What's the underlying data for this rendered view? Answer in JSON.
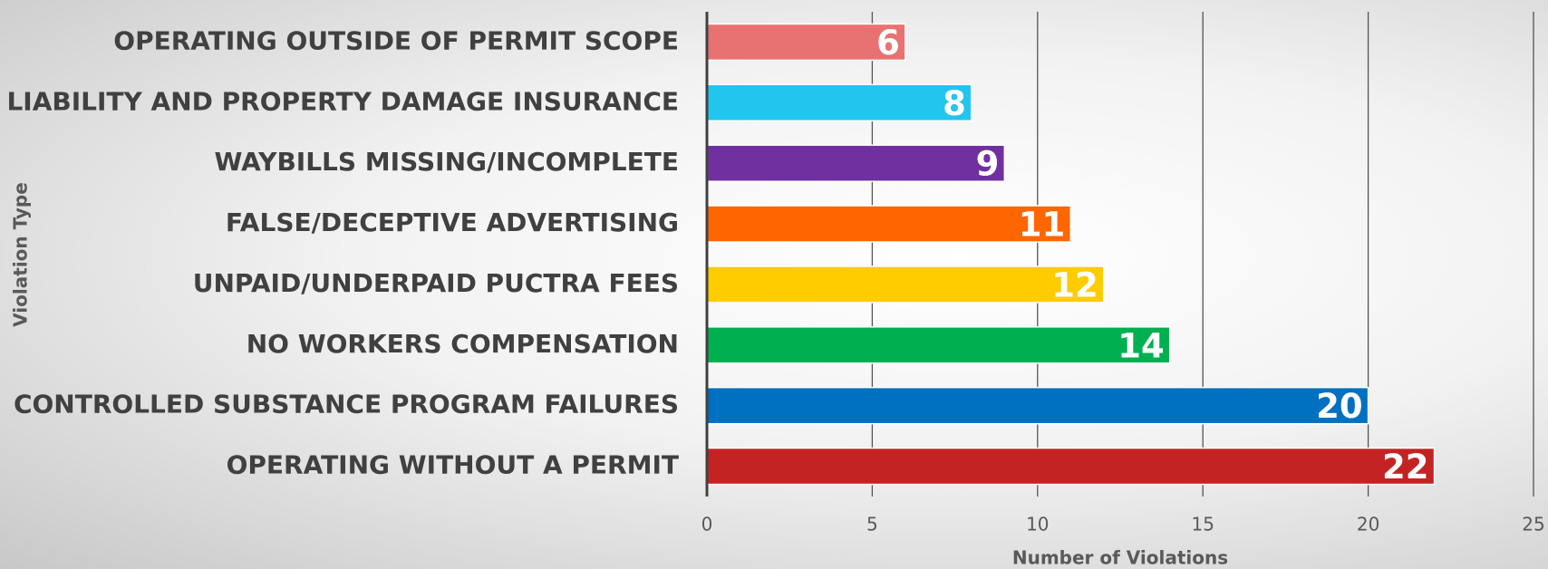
{
  "chart_data": {
    "type": "bar",
    "orientation": "horizontal",
    "xlabel": "Number of Violations",
    "ylabel": "Violation Type",
    "categories": [
      "OPERATING OUTSIDE OF PERMIT SCOPE",
      "LIABILITY AND PROPERTY DAMAGE INSURANCE",
      "WAYBILLS MISSING/INCOMPLETE",
      "FALSE/DECEPTIVE ADVERTISING",
      "UNPAID/UNDERPAID PUCTRA FEES",
      "NO WORKERS COMPENSATION",
      "CONTROLLED SUBSTANCE PROGRAM FAILURES",
      "OPERATING WITHOUT A PERMIT"
    ],
    "values": [
      6,
      8,
      9,
      11,
      12,
      14,
      20,
      22
    ],
    "colors": [
      "#e87272",
      "#22c5ee",
      "#7030a0",
      "#ff6600",
      "#ffcc00",
      "#00b050",
      "#0070c0",
      "#c42324"
    ],
    "xlim": [
      0,
      25
    ],
    "xticks": [
      0,
      5,
      10,
      15,
      20,
      25
    ],
    "grid": true
  }
}
